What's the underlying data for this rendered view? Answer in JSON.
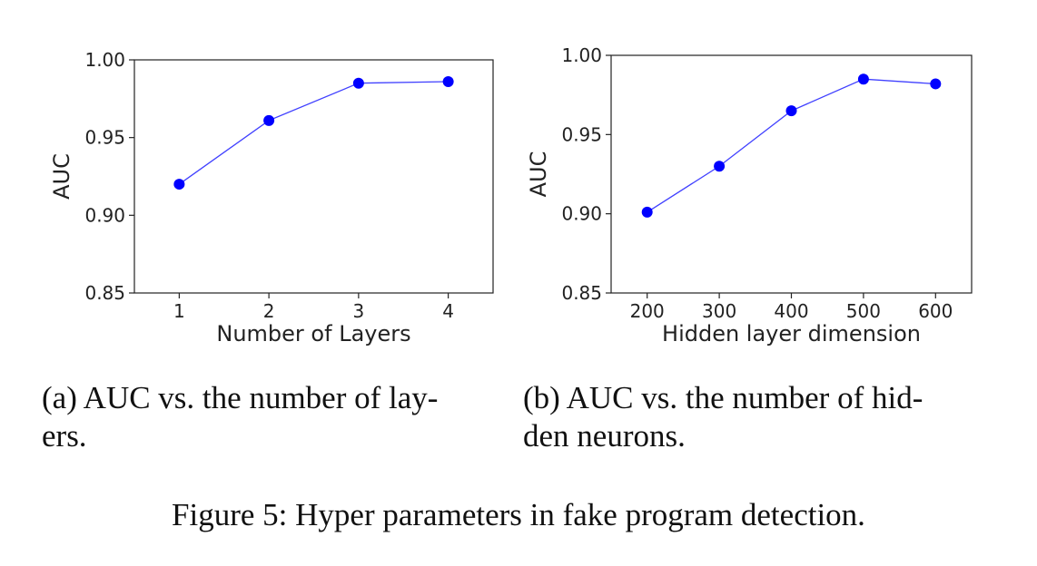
{
  "chart_data": [
    {
      "type": "line",
      "xlabel": "Number of Layers",
      "ylabel": "AUC",
      "x": [
        1,
        2,
        3,
        4
      ],
      "x_tick_labels": [
        "1",
        "2",
        "3",
        "4"
      ],
      "y_tick_labels": [
        "1.00",
        "0.95",
        "0.90",
        "0.85"
      ],
      "y_ticks": [
        1.0,
        0.95,
        0.9,
        0.85
      ],
      "ylim": [
        0.85,
        1.0
      ],
      "xlim": [
        0.5,
        4.5
      ],
      "series": [
        {
          "values": [
            0.92,
            0.961,
            0.985,
            0.986
          ],
          "color": "#0000ff"
        }
      ],
      "grid": false,
      "caption": "(a) AUC vs. the number of layers."
    },
    {
      "type": "line",
      "xlabel": "Hidden layer dimension",
      "ylabel": "AUC",
      "x": [
        200,
        300,
        400,
        500,
        600
      ],
      "x_tick_labels": [
        "200",
        "300",
        "400",
        "500",
        "600"
      ],
      "y_tick_labels": [
        "1.00",
        "0.95",
        "0.90",
        "0.85"
      ],
      "y_ticks": [
        1.0,
        0.95,
        0.9,
        0.85
      ],
      "ylim": [
        0.85,
        1.0
      ],
      "xlim": [
        150,
        650
      ],
      "series": [
        {
          "values": [
            0.901,
            0.93,
            0.965,
            0.985,
            0.982
          ],
          "color": "#0000ff"
        }
      ],
      "grid": false,
      "caption": "(b) AUC vs. the number of hidden neurons."
    }
  ],
  "captions": {
    "a_line1": "(a) AUC vs.  the number of lay-",
    "a_line2": "ers.",
    "b_line1": "(b) AUC vs.  the number of hid-",
    "b_line2": "den neurons.",
    "figure": "Figure 5: Hyper parameters in fake program detection."
  }
}
